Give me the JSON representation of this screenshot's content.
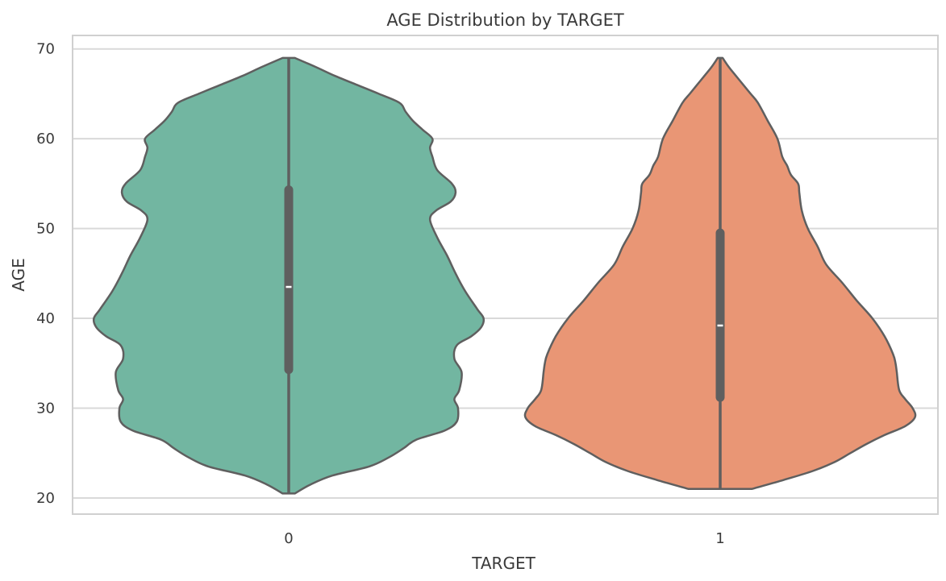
{
  "chart_data": {
    "type": "violin",
    "title": "AGE Distribution by TARGET",
    "xlabel": "TARGET",
    "ylabel": "AGE",
    "categories": [
      "0",
      "1"
    ],
    "ylim": [
      18.2,
      71.5
    ],
    "yticks": [
      20,
      30,
      40,
      50,
      60,
      70
    ],
    "grid": "horizontal",
    "colors": {
      "0": "#72b6a1",
      "1": "#e99675",
      "outline": "#5f5f5f",
      "grid": "#d9d9d9",
      "frame": "#d0d0d0",
      "median": "#ffffff"
    },
    "violins": [
      {
        "category": "0",
        "min": 20.5,
        "q1": 34.3,
        "median": 43.5,
        "q3": 54.3,
        "max": 69,
        "profile": [
          [
            20.5,
            0.05
          ],
          [
            21.5,
            0.18
          ],
          [
            22.5,
            0.36
          ],
          [
            23.5,
            0.66
          ],
          [
            24.5,
            0.82
          ],
          [
            25.5,
            0.94
          ],
          [
            26.5,
            1.05
          ],
          [
            27.5,
            1.28
          ],
          [
            28.5,
            1.38
          ],
          [
            30.0,
            1.39
          ],
          [
            31.0,
            1.36
          ],
          [
            32.0,
            1.4
          ],
          [
            34.0,
            1.42
          ],
          [
            35.5,
            1.36
          ],
          [
            37.0,
            1.38
          ],
          [
            38.0,
            1.5
          ],
          [
            39.0,
            1.58
          ],
          [
            40.0,
            1.6
          ],
          [
            41.0,
            1.55
          ],
          [
            43.0,
            1.45
          ],
          [
            45.0,
            1.37
          ],
          [
            47.0,
            1.3
          ],
          [
            49.0,
            1.22
          ],
          [
            51.0,
            1.16
          ],
          [
            52.0,
            1.21
          ],
          [
            53.0,
            1.33
          ],
          [
            54.0,
            1.37
          ],
          [
            55.0,
            1.34
          ],
          [
            56.5,
            1.22
          ],
          [
            58.0,
            1.18
          ],
          [
            59.0,
            1.16
          ],
          [
            60.0,
            1.18
          ],
          [
            61.0,
            1.1
          ],
          [
            62.0,
            1.02
          ],
          [
            63.0,
            0.96
          ],
          [
            64.0,
            0.91
          ],
          [
            65.0,
            0.74
          ],
          [
            66.0,
            0.56
          ],
          [
            67.0,
            0.38
          ],
          [
            68.0,
            0.22
          ],
          [
            69.0,
            0.05
          ]
        ]
      },
      {
        "category": "1",
        "min": 21.0,
        "q1": 31.2,
        "median": 39.2,
        "q3": 49.5,
        "max": 69,
        "profile": [
          [
            21.0,
            0.26
          ],
          [
            22.0,
            0.52
          ],
          [
            23.0,
            0.76
          ],
          [
            24.0,
            0.94
          ],
          [
            25.0,
            1.07
          ],
          [
            26.0,
            1.2
          ],
          [
            27.0,
            1.35
          ],
          [
            28.0,
            1.52
          ],
          [
            29.0,
            1.6
          ],
          [
            30.0,
            1.58
          ],
          [
            31.0,
            1.52
          ],
          [
            32.0,
            1.47
          ],
          [
            34.0,
            1.45
          ],
          [
            35.0,
            1.44
          ],
          [
            36.0,
            1.42
          ],
          [
            38.0,
            1.35
          ],
          [
            40.0,
            1.25
          ],
          [
            42.0,
            1.12
          ],
          [
            44.0,
            1.0
          ],
          [
            46.0,
            0.87
          ],
          [
            48.0,
            0.8
          ],
          [
            50.0,
            0.72
          ],
          [
            52.0,
            0.67
          ],
          [
            54.0,
            0.65
          ],
          [
            55.0,
            0.64
          ],
          [
            56.0,
            0.58
          ],
          [
            57.0,
            0.55
          ],
          [
            58.0,
            0.51
          ],
          [
            60.0,
            0.47
          ],
          [
            62.0,
            0.39
          ],
          [
            64.0,
            0.31
          ],
          [
            65.0,
            0.25
          ],
          [
            66.0,
            0.19
          ],
          [
            67.0,
            0.13
          ],
          [
            68.0,
            0.07
          ],
          [
            69.0,
            0.02
          ]
        ]
      }
    ]
  }
}
